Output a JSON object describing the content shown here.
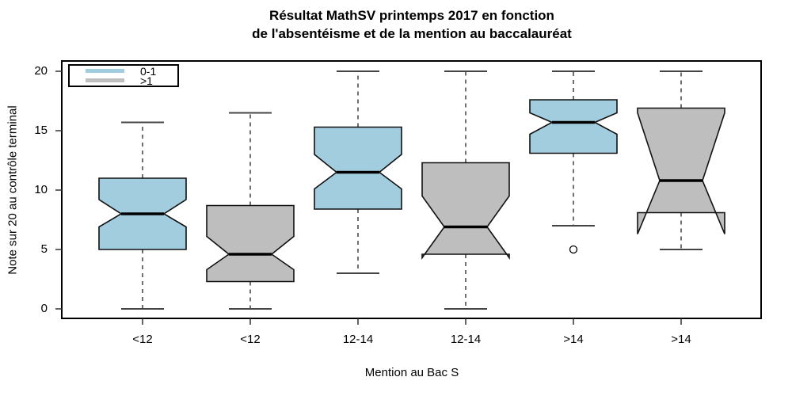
{
  "chart_data": {
    "type": "boxplot",
    "title": "Résultat MathSV printemps 2017 en fonction de l'absentéisme et de la mention au baccalauréat",
    "title_lines": [
      "Résultat MathSV printemps 2017 en fonction",
      "de l'absentéisme et de la mention au baccalauréat"
    ],
    "xlabel": "Mention au Bac S",
    "ylabel": "Note sur 20 au contrôle terminal",
    "ylim": [
      0,
      20
    ],
    "yticks": [
      0,
      5,
      10,
      15,
      20
    ],
    "categories": [
      "<12",
      "<12",
      "12-14",
      "12-14",
      ">14",
      ">14"
    ],
    "legend": {
      "position": "top-left",
      "entries": [
        {
          "label": "0-1",
          "color": "#A2CDDF"
        },
        {
          "label": ">1",
          "color": "#BEBEBE"
        }
      ]
    },
    "grid": false,
    "notched": true,
    "boxes": [
      {
        "category": "<12",
        "group": "0-1",
        "color": "#A2CDDF",
        "whisker_low": 0,
        "q1": 5.0,
        "median": 8.0,
        "q3": 11.0,
        "whisker_high": 15.7,
        "notch_low": 6.9,
        "notch_high": 9.2,
        "outliers": []
      },
      {
        "category": "<12",
        "group": ">1",
        "color": "#BEBEBE",
        "whisker_low": 0,
        "q1": 2.3,
        "median": 4.6,
        "q3": 8.7,
        "whisker_high": 16.5,
        "notch_low": 3.3,
        "notch_high": 6.1,
        "outliers": []
      },
      {
        "category": "12-14",
        "group": "0-1",
        "color": "#A2CDDF",
        "whisker_low": 3,
        "q1": 8.4,
        "median": 11.5,
        "q3": 15.3,
        "whisker_high": 20,
        "notch_low": 10.1,
        "notch_high": 13.0,
        "outliers": []
      },
      {
        "category": "12-14",
        "group": ">1",
        "color": "#BEBEBE",
        "whisker_low": 0,
        "q1": 4.6,
        "median": 6.9,
        "q3": 12.3,
        "whisker_high": 20,
        "notch_low": 4.3,
        "notch_high": 9.5,
        "outliers": []
      },
      {
        "category": ">14",
        "group": "0-1",
        "color": "#A2CDDF",
        "whisker_low": 7,
        "q1": 13.1,
        "median": 15.7,
        "q3": 17.6,
        "whisker_high": 20,
        "notch_low": 14.7,
        "notch_high": 16.5,
        "outliers": [
          5
        ]
      },
      {
        "category": ">14",
        "group": ">1",
        "color": "#BEBEBE",
        "whisker_low": 5,
        "q1": 8.1,
        "median": 10.8,
        "q3": 16.9,
        "whisker_high": 20,
        "notch_low": 6.3,
        "notch_high": 16.5,
        "outliers": []
      }
    ]
  }
}
